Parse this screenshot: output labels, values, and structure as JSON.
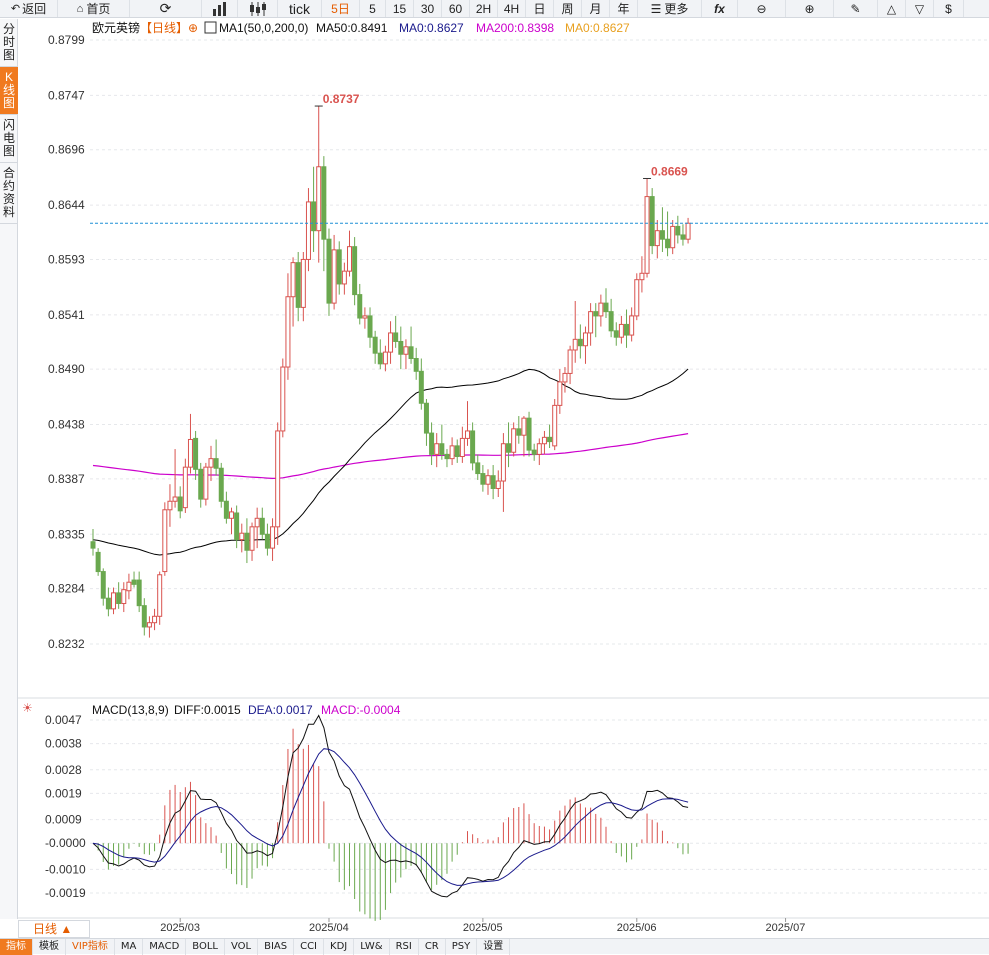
{
  "toolbar": {
    "back": "返回",
    "home": "首页",
    "tick": "tick",
    "five_day": "5日",
    "periods": [
      "5",
      "15",
      "30",
      "60",
      "2H",
      "4H",
      "日",
      "周",
      "月",
      "年"
    ],
    "more": "更多",
    "fx": "fx"
  },
  "sidetabs": [
    "分时图",
    "K线图",
    "闪电图",
    "合约资料"
  ],
  "header": {
    "symbol": "欧元英镑",
    "period_tag": "【日线】",
    "ma_config": "MA1(50,0,200,0)",
    "ma50": "MA50:0.8491",
    "ma0_a": "MA0:0.8627",
    "ma200": "MA200:0.8398",
    "ma0_b": "MA0:0.8627"
  },
  "macd_header": {
    "config": "MACD(13,8,9)",
    "diff": "DIFF:0.0015",
    "dea": "DEA:0.0017",
    "macd": "MACD:-0.0004"
  },
  "period_select": "日线 ▲",
  "bottom_tabs": [
    "指标",
    "模板",
    "VIP指标",
    "MA",
    "MACD",
    "BOLL",
    "VOL",
    "BIAS",
    "CCI",
    "KDJ",
    "LW&",
    "RSI",
    "CR",
    "PSY",
    "设置"
  ],
  "chart_data": {
    "type": "candlestick",
    "price_axis_ticks": [
      "0.8799",
      "0.8747",
      "0.8696",
      "0.8644",
      "0.8593",
      "0.8541",
      "0.8490",
      "0.8438",
      "0.8387",
      "0.8335",
      "0.8284",
      "0.8232"
    ],
    "macd_axis_ticks": [
      "0.0047",
      "0.0038",
      "0.0028",
      "0.0019",
      "0.0009",
      "-0.0000",
      "-0.0010",
      "-0.0019"
    ],
    "x_labels": [
      "2025/03",
      "2025/04",
      "2025/05",
      "2025/06",
      "2025/07"
    ],
    "annotations": [
      "0.8737",
      "0.8669"
    ],
    "last_price": 0.8627,
    "colors": {
      "up": "#d9534f",
      "down": "#6aa84f",
      "ma50": "#000000",
      "ma200": "#cc00cc",
      "last_line": "#1f8fd6",
      "dea": "#1a1a8c"
    },
    "candles": [
      [
        0.8328,
        0.834,
        0.8315,
        0.8322
      ],
      [
        0.8318,
        0.8322,
        0.8296,
        0.83
      ],
      [
        0.83,
        0.8303,
        0.8268,
        0.8275
      ],
      [
        0.8275,
        0.8285,
        0.8258,
        0.8265
      ],
      [
        0.8265,
        0.8285,
        0.826,
        0.828
      ],
      [
        0.828,
        0.829,
        0.8265,
        0.827
      ],
      [
        0.827,
        0.829,
        0.8262,
        0.8283
      ],
      [
        0.8282,
        0.8298,
        0.8274,
        0.829
      ],
      [
        0.8292,
        0.83,
        0.8285,
        0.8288
      ],
      [
        0.8292,
        0.83,
        0.8262,
        0.8268
      ],
      [
        0.8268,
        0.8275,
        0.824,
        0.8248
      ],
      [
        0.8248,
        0.8258,
        0.8238,
        0.8252
      ],
      [
        0.8252,
        0.8265,
        0.8245,
        0.8258
      ],
      [
        0.8258,
        0.83,
        0.825,
        0.8297
      ],
      [
        0.83,
        0.8365,
        0.8296,
        0.8358
      ],
      [
        0.8358,
        0.8382,
        0.8342,
        0.8366
      ],
      [
        0.8366,
        0.8415,
        0.836,
        0.837
      ],
      [
        0.837,
        0.838,
        0.835,
        0.8357
      ],
      [
        0.836,
        0.8406,
        0.8355,
        0.8398
      ],
      [
        0.8398,
        0.8448,
        0.8392,
        0.8424
      ],
      [
        0.8425,
        0.8432,
        0.8386,
        0.8396
      ],
      [
        0.8396,
        0.8402,
        0.836,
        0.8368
      ],
      [
        0.8368,
        0.8402,
        0.8362,
        0.8398
      ],
      [
        0.8398,
        0.8418,
        0.8385,
        0.8406
      ],
      [
        0.8406,
        0.8424,
        0.839,
        0.8397
      ],
      [
        0.8397,
        0.8402,
        0.836,
        0.8366
      ],
      [
        0.8366,
        0.8375,
        0.8345,
        0.835
      ],
      [
        0.835,
        0.836,
        0.8335,
        0.8356
      ],
      [
        0.8355,
        0.8362,
        0.8322,
        0.833
      ],
      [
        0.833,
        0.8345,
        0.8318,
        0.8336
      ],
      [
        0.8336,
        0.835,
        0.8308,
        0.832
      ],
      [
        0.832,
        0.8346,
        0.831,
        0.8342
      ],
      [
        0.8342,
        0.836,
        0.8322,
        0.835
      ],
      [
        0.835,
        0.836,
        0.833,
        0.8335
      ],
      [
        0.8335,
        0.8345,
        0.8315,
        0.8322
      ],
      [
        0.8322,
        0.835,
        0.831,
        0.8342
      ],
      [
        0.8342,
        0.844,
        0.8325,
        0.8432
      ],
      [
        0.8432,
        0.85,
        0.8426,
        0.8492
      ],
      [
        0.8492,
        0.858,
        0.848,
        0.8558
      ],
      [
        0.8558,
        0.8595,
        0.853,
        0.859
      ],
      [
        0.859,
        0.86,
        0.8535,
        0.8548
      ],
      [
        0.8548,
        0.86,
        0.8535,
        0.8593
      ],
      [
        0.8593,
        0.866,
        0.8582,
        0.8647
      ],
      [
        0.8647,
        0.868,
        0.86,
        0.862
      ],
      [
        0.862,
        0.8737,
        0.859,
        0.868
      ],
      [
        0.868,
        0.869,
        0.8582,
        0.8612
      ],
      [
        0.8612,
        0.8622,
        0.854,
        0.8552
      ],
      [
        0.8552,
        0.8616,
        0.8546,
        0.8602
      ],
      [
        0.8602,
        0.861,
        0.856,
        0.857
      ],
      [
        0.857,
        0.859,
        0.856,
        0.8582
      ],
      [
        0.8582,
        0.862,
        0.8577,
        0.8605
      ],
      [
        0.8605,
        0.8614,
        0.855,
        0.856
      ],
      [
        0.856,
        0.857,
        0.8532,
        0.8538
      ],
      [
        0.8538,
        0.8548,
        0.8528,
        0.854
      ],
      [
        0.854,
        0.8548,
        0.851,
        0.852
      ],
      [
        0.852,
        0.8526,
        0.8495,
        0.8505
      ],
      [
        0.8505,
        0.8518,
        0.849,
        0.8495
      ],
      [
        0.8495,
        0.8512,
        0.8488,
        0.8506
      ],
      [
        0.8506,
        0.8535,
        0.8495,
        0.8524
      ],
      [
        0.8524,
        0.854,
        0.851,
        0.8516
      ],
      [
        0.8516,
        0.853,
        0.849,
        0.8504
      ],
      [
        0.8504,
        0.8518,
        0.849,
        0.8511
      ],
      [
        0.8511,
        0.853,
        0.8495,
        0.85
      ],
      [
        0.85,
        0.851,
        0.848,
        0.8488
      ],
      [
        0.8488,
        0.85,
        0.8452,
        0.8458
      ],
      [
        0.8458,
        0.8462,
        0.8418,
        0.843
      ],
      [
        0.843,
        0.844,
        0.84,
        0.841
      ],
      [
        0.841,
        0.843,
        0.8398,
        0.842
      ],
      [
        0.842,
        0.8438,
        0.8405,
        0.841
      ],
      [
        0.841,
        0.8415,
        0.8398,
        0.8406
      ],
      [
        0.8406,
        0.8426,
        0.84,
        0.8418
      ],
      [
        0.8418,
        0.8424,
        0.8402,
        0.8408
      ],
      [
        0.8408,
        0.8436,
        0.8402,
        0.8425
      ],
      [
        0.8425,
        0.846,
        0.8418,
        0.8432
      ],
      [
        0.8432,
        0.844,
        0.8395,
        0.8402
      ],
      [
        0.8402,
        0.841,
        0.8386,
        0.8392
      ],
      [
        0.8392,
        0.84,
        0.8375,
        0.8382
      ],
      [
        0.8382,
        0.8396,
        0.8372,
        0.839
      ],
      [
        0.839,
        0.84,
        0.8368,
        0.8378
      ],
      [
        0.8378,
        0.8395,
        0.837,
        0.8385
      ],
      [
        0.8385,
        0.843,
        0.8356,
        0.842
      ],
      [
        0.842,
        0.844,
        0.8398,
        0.8412
      ],
      [
        0.8412,
        0.844,
        0.8408,
        0.8434
      ],
      [
        0.8434,
        0.8446,
        0.842,
        0.8428
      ],
      [
        0.8428,
        0.8446,
        0.8408,
        0.8444
      ],
      [
        0.8444,
        0.845,
        0.8408,
        0.8414
      ],
      [
        0.8414,
        0.842,
        0.8404,
        0.841
      ],
      [
        0.841,
        0.8425,
        0.84,
        0.842
      ],
      [
        0.842,
        0.8432,
        0.841,
        0.8426
      ],
      [
        0.8426,
        0.8438,
        0.8416,
        0.8422
      ],
      [
        0.8418,
        0.8462,
        0.8414,
        0.8456
      ],
      [
        0.8456,
        0.849,
        0.8448,
        0.8478
      ],
      [
        0.8478,
        0.8492,
        0.8468,
        0.8486
      ],
      [
        0.8486,
        0.8512,
        0.8476,
        0.8508
      ],
      [
        0.8508,
        0.8554,
        0.8496,
        0.8518
      ],
      [
        0.8518,
        0.8532,
        0.85,
        0.8512
      ],
      [
        0.8512,
        0.853,
        0.8495,
        0.8524
      ],
      [
        0.8524,
        0.8552,
        0.8512,
        0.8544
      ],
      [
        0.8544,
        0.8552,
        0.852,
        0.854
      ],
      [
        0.854,
        0.856,
        0.853,
        0.8552
      ],
      [
        0.8552,
        0.8566,
        0.8538,
        0.8544
      ],
      [
        0.8544,
        0.8556,
        0.852,
        0.8526
      ],
      [
        0.8526,
        0.8534,
        0.8512,
        0.852
      ],
      [
        0.852,
        0.854,
        0.8514,
        0.8532
      ],
      [
        0.8532,
        0.8546,
        0.851,
        0.8522
      ],
      [
        0.8522,
        0.8548,
        0.8516,
        0.854
      ],
      [
        0.854,
        0.858,
        0.8536,
        0.8574
      ],
      [
        0.8574,
        0.8596,
        0.8562,
        0.858
      ],
      [
        0.858,
        0.8669,
        0.8576,
        0.8652
      ],
      [
        0.8652,
        0.866,
        0.8598,
        0.8606
      ],
      [
        0.8606,
        0.863,
        0.8594,
        0.862
      ],
      [
        0.862,
        0.8642,
        0.86,
        0.8612
      ],
      [
        0.8612,
        0.8638,
        0.8596,
        0.8604
      ],
      [
        0.8604,
        0.863,
        0.8598,
        0.8624
      ],
      [
        0.8624,
        0.8634,
        0.8608,
        0.8616
      ],
      [
        0.8616,
        0.8626,
        0.8606,
        0.8612
      ],
      [
        0.8612,
        0.8632,
        0.8608,
        0.8627
      ]
    ]
  }
}
